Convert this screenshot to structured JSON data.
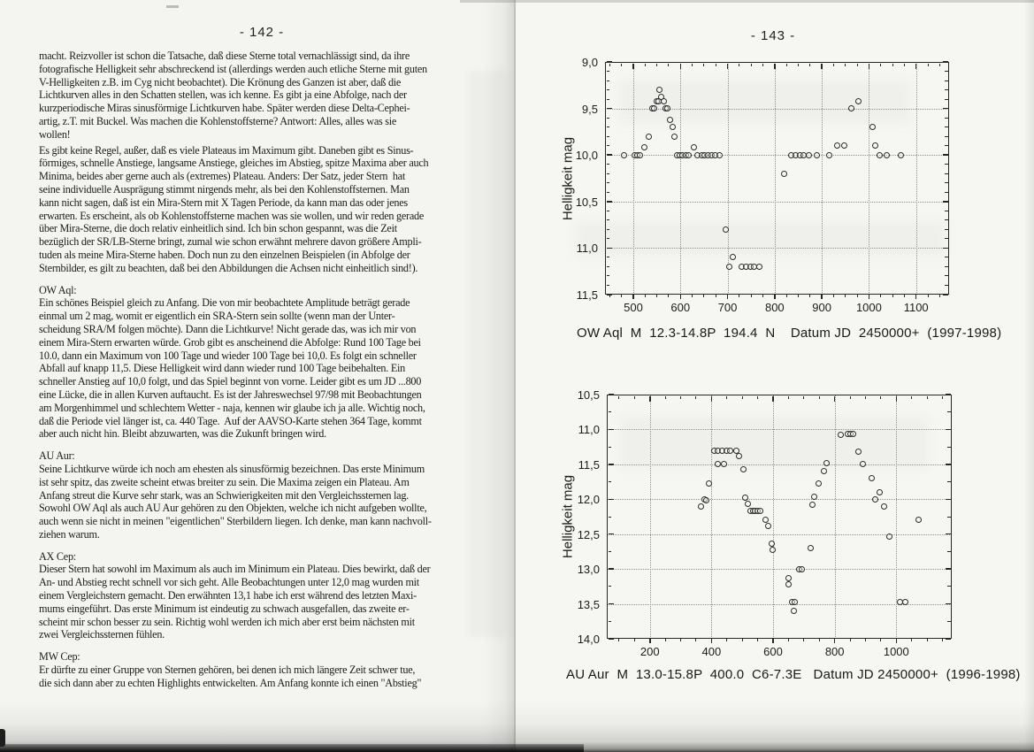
{
  "left_page": {
    "page_number": "- 142 -",
    "para1": "macht. Reizvoller ist schon die Tatsache, daß diese Sterne total vernachlässigt sind, da ihre\nfotografische Helligkeit sehr abschreckend ist (allerdings werden auch etliche Sterne mit guten\nV-Helligkeiten z.B. im Cyg nicht beobachtet). Die Krönung des Ganzen ist aber, daß die\nLichtkurven alles in den Schatten stellen, was ich kenne. Es gibt ja eine Abfolge, nach der\nkurzperiodische Miras sinusförmige Lichtkurven habe. Später werden diese Delta-Cephei-\nartig, z.T. mit Buckel. Was machen die Kohlenstoffsterne? Antwort: Alles, alles was sie\nwollen!",
    "para2": "Es gibt keine Regel, außer, daß es viele Plateaus im Maximum gibt. Daneben gibt es Sinus-\nförmiges, schnelle Anstiege, langsame Anstiege, gleiches im Abstieg, spitze Maxima aber auch\nMinima, beides aber gerne auch als (extremes) Plateau. Anders: Der Satz, jeder Stern  hat\nseine individuelle Ausprägung stimmt nirgends mehr, als bei den Kohlenstoffsternen. Man\nkann nicht sagen, daß ist ein Mira-Stern mit X Tagen Periode, da kann man das oder jenes\nerwarten. Es erscheint, als ob Kohlenstoffsterne machen was sie wollen, und wir reden gerade\nüber Mira-Sterne, die doch relativ einheitlich sind. Ich bin schon gespannt, was die Zeit\nbezüglich der SR/LB-Sterne bringt, zumal wie schon erwähnt mehrere davon größere Ampli-\ntuden als meine Mira-Sterne haben. Doch nun zu den einzelnen Beispielen (in Abfolge der\nSternbilder, es gilt zu beachten, daß bei den Abbildungen die Achsen nicht einheitlich sind!).",
    "sections": [
      {
        "heading": "OW Aql:",
        "body": "Ein schönes Beispiel gleich zu Anfang. Die von mir beobachtete Amplitude beträgt gerade\neinmal um 2 mag, womit er eigentlich ein SRA-Stern sein sollte (wenn man der Unter-\nscheidung SRA/M folgen möchte). Dann die Lichtkurve! Nicht gerade das, was ich mir von\neinem Mira-Stern erwarten würde. Grob gibt es anscheinend die Abfolge: Rund 100 Tage bei\n10.0, dann ein Maximum von 100 Tage und wieder 100 Tage bei 10,0. Es folgt ein schneller\nAbfall auf knapp 11,5. Diese Helligkeit wird dann wieder rund 100 Tage beibehalten. Ein\nschneller Anstieg auf 10,0 folgt, und das Spiel beginnt von vorne. Leider gibt es um JD ...800\neine Lücke, die in allen Kurven auftaucht. Es ist der Jahreswechsel 97/98 mit Beobachtungen\nam Morgenhimmel und schlechtem Wetter - naja, kennen wir glaube ich ja alle. Wichtig noch,\ndaß die Periode viel länger ist, ca. 440 Tage.  Auf der AAVSO-Karte stehen 364 Tage, kommt\naber auch nicht hin. Bleibt abzuwarten, was die Zukunft bringen wird."
      },
      {
        "heading": "AU Aur:",
        "body": "Seine Lichtkurve würde ich noch am ehesten als sinusförmig bezeichnen. Das erste Minimum\nist sehr spitz, das zweite scheint etwas breiter zu sein. Die Maxima zeigen ein Plateau. Am\nAnfang streut die Kurve sehr stark, was an Schwierigkeiten mit den Vergleichssternen lag.\nSowohl OW Aql als auch AU Aur gehören zu den Objekten, welche ich nicht aufgeben wollte,\nauch wenn sie nicht in meinen \"eigentlichen\" Sterbildern liegen. Ich denke, man kann nachvoll-\nziehen warum."
      },
      {
        "heading": "AX Cep:",
        "body": "Dieser Stern hat sowohl im Maximum als auch im Minimum ein Plateau. Dies bewirkt, daß der\nAn- und Abstieg recht schnell vor sich geht. Alle Beobachtungen unter 12,0 mag wurden mit\neinem Vergleichstern gemacht. Den erwähnten 13,1 habe ich erst während des letzten Maxi-\nmums eingeführt. Das erste Minimum ist eindeutig zu schwach ausgefallen, das zweite er-\nscheint mir schon besser zu sein. Richtig wohl werden ich mich aber erst beim nächsten mit\nzwei Vergleichssternen fühlen."
      },
      {
        "heading": "MW Cep:",
        "body": "Er dürfte zu einer Gruppe von Sternen gehören, bei denen ich mich längere Zeit schwer tue,\ndie sich dann aber zu echten Highlights entwickelten. Am Anfang konnte ich einen \"Abstieg\""
      }
    ]
  },
  "right_page": {
    "page_number": "- 143 -"
  },
  "chart_data": [
    {
      "type": "scatter",
      "star": "OW Aql",
      "caption": "OW Aql  M  12.3-14.8P  194.4  N    Datum JD  2450000+  (1997-1998)",
      "ylabel": "Helligkeit mag",
      "xlim": [
        440,
        1170
      ],
      "ylim": [
        9.0,
        11.5
      ],
      "y_axis_inverted_magnitudes": true,
      "grid": "dotted",
      "legend": "none",
      "xticks": [
        500,
        600,
        700,
        800,
        900,
        1000,
        1100
      ],
      "xtick_labels": [
        "500",
        "600",
        "700",
        "800",
        "900",
        "1000",
        "1100"
      ],
      "yticks": [
        9.0,
        9.5,
        10.0,
        10.5,
        11.0,
        11.5
      ],
      "ytick_labels": [
        "9,0",
        "9,5",
        "10,0",
        "10,5",
        "11,0",
        "11,5"
      ],
      "x_minor_step": 25,
      "y_minor_step": 0.1,
      "points": [
        [
          480,
          10.0
        ],
        [
          502,
          10.0
        ],
        [
          508,
          10.0
        ],
        [
          515,
          10.0
        ],
        [
          523,
          9.92
        ],
        [
          532,
          9.8
        ],
        [
          540,
          9.5
        ],
        [
          545,
          9.5
        ],
        [
          549,
          9.42
        ],
        [
          553,
          9.42
        ],
        [
          556,
          9.3
        ],
        [
          560,
          9.38
        ],
        [
          564,
          9.42
        ],
        [
          569,
          9.5
        ],
        [
          573,
          9.5
        ],
        [
          578,
          9.62
        ],
        [
          583,
          9.7
        ],
        [
          588,
          9.8
        ],
        [
          593,
          10.0
        ],
        [
          599,
          10.0
        ],
        [
          605,
          10.0
        ],
        [
          611,
          10.0
        ],
        [
          617,
          10.0
        ],
        [
          628,
          9.92
        ],
        [
          637,
          10.0
        ],
        [
          645,
          10.0
        ],
        [
          652,
          10.0
        ],
        [
          659,
          10.0
        ],
        [
          666,
          10.0
        ],
        [
          673,
          10.0
        ],
        [
          683,
          10.0
        ],
        [
          697,
          10.8
        ],
        [
          703,
          11.2
        ],
        [
          712,
          11.1
        ],
        [
          730,
          11.2
        ],
        [
          739,
          11.2
        ],
        [
          748,
          11.2
        ],
        [
          757,
          11.2
        ],
        [
          768,
          11.2
        ],
        [
          820,
          10.2
        ],
        [
          835,
          10.0
        ],
        [
          844,
          10.0
        ],
        [
          853,
          10.0
        ],
        [
          862,
          10.0
        ],
        [
          872,
          10.0
        ],
        [
          890,
          10.0
        ],
        [
          915,
          10.0
        ],
        [
          933,
          9.9
        ],
        [
          948,
          9.9
        ],
        [
          963,
          9.5
        ],
        [
          977,
          9.42
        ],
        [
          1008,
          9.7
        ],
        [
          1014,
          9.9
        ],
        [
          1022,
          10.0
        ],
        [
          1038,
          10.0
        ],
        [
          1068,
          10.0
        ]
      ]
    },
    {
      "type": "scatter",
      "star": "AU Aur",
      "caption": "AU Aur  M  13.0-15.8P  400.0  C6-7.3E   Datum JD 2450000+  (1996-1998)",
      "ylabel": "Helligkeit mag",
      "xlim": [
        60,
        1180
      ],
      "ylim": [
        10.5,
        14.0
      ],
      "y_axis_inverted_magnitudes": true,
      "grid": "dotted",
      "legend": "none",
      "xticks": [
        200,
        400,
        600,
        800,
        1000
      ],
      "xtick_labels": [
        "200",
        "400",
        "600",
        "800",
        "1000"
      ],
      "yticks": [
        10.5,
        11.0,
        11.5,
        12.0,
        12.5,
        13.0,
        13.5,
        14.0
      ],
      "ytick_labels": [
        "10,5",
        "11,0",
        "11,5",
        "12,0",
        "12,5",
        "13,0",
        "13,5",
        "14,0"
      ],
      "x_minor_step": 50,
      "y_minor_step": 0.25,
      "points": [
        [
          367,
          12.1
        ],
        [
          377,
          12.0
        ],
        [
          382,
          12.02
        ],
        [
          393,
          11.78
        ],
        [
          408,
          11.3
        ],
        [
          421,
          11.3
        ],
        [
          434,
          11.3
        ],
        [
          448,
          11.3
        ],
        [
          462,
          11.3
        ],
        [
          480,
          11.3
        ],
        [
          419,
          11.49
        ],
        [
          440,
          11.49
        ],
        [
          490,
          11.38
        ],
        [
          503,
          11.57
        ],
        [
          510,
          11.98
        ],
        [
          518,
          12.07
        ],
        [
          526,
          12.17
        ],
        [
          534,
          12.17
        ],
        [
          542,
          12.17
        ],
        [
          550,
          12.17
        ],
        [
          558,
          12.17
        ],
        [
          575,
          12.3
        ],
        [
          585,
          12.38
        ],
        [
          597,
          12.64
        ],
        [
          599,
          12.73
        ],
        [
          649,
          13.13
        ],
        [
          651,
          13.22
        ],
        [
          663,
          13.48
        ],
        [
          671,
          13.48
        ],
        [
          667,
          13.6
        ],
        [
          686,
          13.0
        ],
        [
          693,
          13.0
        ],
        [
          722,
          12.7
        ],
        [
          727,
          12.08
        ],
        [
          734,
          11.97
        ],
        [
          749,
          11.78
        ],
        [
          764,
          11.6
        ],
        [
          774,
          11.48
        ],
        [
          821,
          11.08
        ],
        [
          842,
          11.07
        ],
        [
          852,
          11.07
        ],
        [
          861,
          11.07
        ],
        [
          877,
          11.32
        ],
        [
          892,
          11.5
        ],
        [
          921,
          11.7
        ],
        [
          932,
          12.0
        ],
        [
          946,
          11.9
        ],
        [
          960,
          12.1
        ],
        [
          977,
          12.53
        ],
        [
          1013,
          13.47
        ],
        [
          1028,
          13.47
        ],
        [
          1072,
          12.3
        ]
      ]
    }
  ]
}
